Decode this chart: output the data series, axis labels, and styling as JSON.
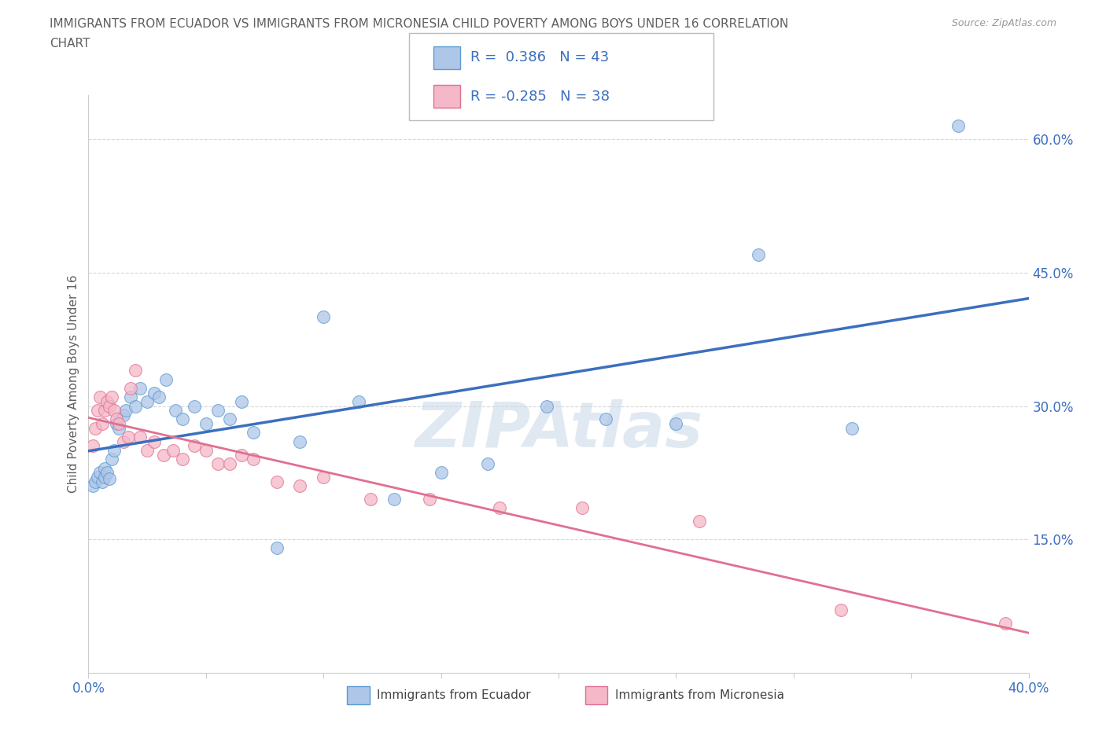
{
  "title_line1": "IMMIGRANTS FROM ECUADOR VS IMMIGRANTS FROM MICRONESIA CHILD POVERTY AMONG BOYS UNDER 16 CORRELATION",
  "title_line2": "CHART",
  "source": "Source: ZipAtlas.com",
  "ylabel": "Child Poverty Among Boys Under 16",
  "xlim": [
    0.0,
    0.4
  ],
  "ylim": [
    0.0,
    0.65
  ],
  "xticks": [
    0.0,
    0.05,
    0.1,
    0.15,
    0.2,
    0.25,
    0.3,
    0.35,
    0.4
  ],
  "xticklabels": [
    "0.0%",
    "",
    "",
    "",
    "",
    "",
    "",
    "",
    "40.0%"
  ],
  "ytick_positions": [
    0.15,
    0.3,
    0.45,
    0.6
  ],
  "ytick_labels": [
    "15.0%",
    "30.0%",
    "45.0%",
    "60.0%"
  ],
  "ecuador_fill_color": "#aec6e8",
  "ecuador_edge_color": "#5b9bd5",
  "micronesia_fill_color": "#f4b8c8",
  "micronesia_edge_color": "#e07090",
  "ecuador_trend_color": "#3c6fbe",
  "micronesia_trend_color": "#e07090",
  "dashed_trend_color": "#a0b8d8",
  "watermark": "ZIPAtlas",
  "watermark_color": "#c8d8e8",
  "legend_text_color": "#3c6fbe",
  "grid_color": "#d8d8d8",
  "background_color": "#ffffff",
  "title_color": "#606060",
  "axis_label_color": "#606060",
  "tick_label_color": "#3c6fbe",
  "ecuador_x": [
    0.002,
    0.003,
    0.004,
    0.005,
    0.006,
    0.007,
    0.007,
    0.008,
    0.009,
    0.01,
    0.011,
    0.012,
    0.013,
    0.015,
    0.016,
    0.018,
    0.02,
    0.022,
    0.025,
    0.028,
    0.03,
    0.033,
    0.037,
    0.04,
    0.045,
    0.05,
    0.055,
    0.06,
    0.065,
    0.07,
    0.08,
    0.09,
    0.1,
    0.115,
    0.13,
    0.15,
    0.17,
    0.195,
    0.22,
    0.25,
    0.285,
    0.325,
    0.37
  ],
  "ecuador_y": [
    0.21,
    0.215,
    0.22,
    0.225,
    0.215,
    0.22,
    0.23,
    0.225,
    0.218,
    0.24,
    0.25,
    0.28,
    0.275,
    0.29,
    0.295,
    0.31,
    0.3,
    0.32,
    0.305,
    0.315,
    0.31,
    0.33,
    0.295,
    0.285,
    0.3,
    0.28,
    0.295,
    0.285,
    0.305,
    0.27,
    0.14,
    0.26,
    0.4,
    0.305,
    0.195,
    0.225,
    0.235,
    0.3,
    0.285,
    0.28,
    0.47,
    0.275,
    0.615
  ],
  "micronesia_x": [
    0.002,
    0.003,
    0.004,
    0.005,
    0.006,
    0.007,
    0.008,
    0.009,
    0.01,
    0.011,
    0.012,
    0.013,
    0.015,
    0.017,
    0.018,
    0.02,
    0.022,
    0.025,
    0.028,
    0.032,
    0.036,
    0.04,
    0.045,
    0.05,
    0.055,
    0.06,
    0.065,
    0.07,
    0.08,
    0.09,
    0.1,
    0.12,
    0.145,
    0.175,
    0.21,
    0.26,
    0.32,
    0.39
  ],
  "micronesia_y": [
    0.255,
    0.275,
    0.295,
    0.31,
    0.28,
    0.295,
    0.305,
    0.3,
    0.31,
    0.295,
    0.285,
    0.28,
    0.26,
    0.265,
    0.32,
    0.34,
    0.265,
    0.25,
    0.26,
    0.245,
    0.25,
    0.24,
    0.255,
    0.25,
    0.235,
    0.235,
    0.245,
    0.24,
    0.215,
    0.21,
    0.22,
    0.195,
    0.195,
    0.185,
    0.185,
    0.17,
    0.07,
    0.055
  ]
}
